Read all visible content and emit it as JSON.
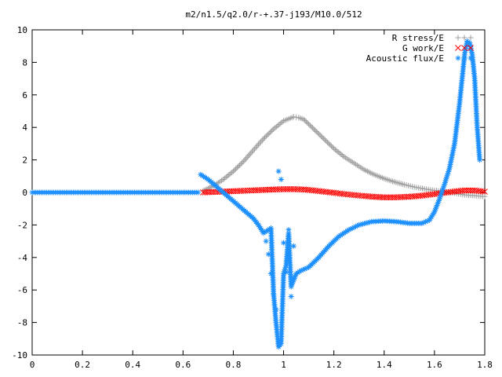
{
  "chart_data": {
    "type": "scatter",
    "title": "m2/n1.5/q2.0/r-+.37-j193/M10.0/512",
    "xlabel": "",
    "ylabel": "",
    "xlim": [
      0,
      1.8
    ],
    "ylim": [
      -10,
      10
    ],
    "x_ticks": [
      "0",
      "0.2",
      "0.4",
      "0.6",
      "0.8",
      "1",
      "1.2",
      "1.4",
      "1.6",
      "1.8"
    ],
    "y_ticks": [
      "10",
      "8",
      "6",
      "4",
      "2",
      "0",
      "-2",
      "-4",
      "-6",
      "-8",
      "-10"
    ],
    "grid": false,
    "legend_position": "top-right",
    "series": [
      {
        "name": "R stress/E",
        "marker": "+",
        "color": "#a0a0a0",
        "x": [
          0.68,
          0.72,
          0.76,
          0.8,
          0.84,
          0.88,
          0.92,
          0.96,
          1.0,
          1.04,
          1.06,
          1.08,
          1.12,
          1.16,
          1.2,
          1.24,
          1.28,
          1.32,
          1.36,
          1.4,
          1.44,
          1.48,
          1.52,
          1.56,
          1.6,
          1.64,
          1.68,
          1.72,
          1.76,
          1.8
        ],
        "y": [
          0.1,
          0.4,
          0.8,
          1.3,
          1.9,
          2.6,
          3.3,
          3.9,
          4.4,
          4.65,
          4.6,
          4.5,
          3.9,
          3.3,
          2.7,
          2.2,
          1.8,
          1.4,
          1.1,
          0.85,
          0.65,
          0.48,
          0.33,
          0.22,
          0.12,
          0.05,
          -0.05,
          -0.15,
          -0.2,
          -0.25
        ]
      },
      {
        "name": "G work/E",
        "marker": "x",
        "color": "#ff0000",
        "x": [
          0.68,
          0.72,
          0.76,
          0.8,
          0.84,
          0.88,
          0.92,
          0.96,
          1.0,
          1.04,
          1.08,
          1.12,
          1.16,
          1.2,
          1.24,
          1.28,
          1.32,
          1.36,
          1.4,
          1.44,
          1.48,
          1.52,
          1.56,
          1.6,
          1.64,
          1.68,
          1.72,
          1.76,
          1.8
        ],
        "y": [
          0.0,
          0.03,
          0.05,
          0.08,
          0.1,
          0.13,
          0.15,
          0.18,
          0.2,
          0.2,
          0.18,
          0.12,
          0.05,
          -0.02,
          -0.1,
          -0.16,
          -0.22,
          -0.27,
          -0.3,
          -0.3,
          -0.28,
          -0.24,
          -0.18,
          -0.1,
          -0.02,
          0.06,
          0.12,
          0.12,
          0.05
        ]
      },
      {
        "name": "Acoustic flux/E",
        "marker": "*",
        "color": "#1e90ff",
        "x": [
          0.67,
          0.7,
          0.73,
          0.76,
          0.79,
          0.82,
          0.85,
          0.88,
          0.9,
          0.92,
          0.95,
          0.96,
          0.97,
          0.98,
          0.99,
          1.0,
          1.01,
          1.02,
          1.03,
          1.05,
          1.07,
          1.1,
          1.14,
          1.18,
          1.22,
          1.26,
          1.3,
          1.35,
          1.4,
          1.45,
          1.5,
          1.55,
          1.58,
          1.6,
          1.62,
          1.64,
          1.66,
          1.68,
          1.7,
          1.72,
          1.73,
          1.74,
          1.75,
          1.76,
          1.77,
          1.78
        ],
        "y": [
          1.1,
          0.8,
          0.4,
          0.0,
          -0.4,
          -0.8,
          -1.2,
          -1.6,
          -2.0,
          -2.5,
          -2.2,
          -6.2,
          -8.0,
          -9.5,
          -9.3,
          -5.0,
          -4.5,
          -2.5,
          -5.8,
          -5.0,
          -4.8,
          -4.6,
          -4.0,
          -3.3,
          -2.7,
          -2.3,
          -2.0,
          -1.8,
          -1.75,
          -1.8,
          -1.9,
          -1.9,
          -1.7,
          -1.2,
          -0.4,
          0.5,
          1.5,
          3.0,
          5.5,
          8.5,
          9.3,
          9.2,
          8.5,
          7.0,
          4.0,
          2.0
        ]
      },
      {
        "name": "",
        "marker": "*",
        "color": "#1e90ff",
        "x": [
          0.0,
          0.1,
          0.2,
          0.3,
          0.4,
          0.5,
          0.6,
          0.66
        ],
        "y": [
          0,
          0,
          0,
          0,
          0,
          0,
          0,
          0
        ]
      },
      {
        "name": "",
        "marker": "*",
        "color": "#1e90ff",
        "x": [
          0.93,
          0.94,
          0.95,
          0.96,
          0.97,
          0.98,
          0.99,
          1.0,
          1.01,
          1.02,
          1.03,
          1.04
        ],
        "y": [
          -3.0,
          -3.8,
          -5.0,
          -6.3,
          -7.2,
          1.3,
          0.8,
          -3.1,
          -4.9,
          -2.3,
          -6.4,
          -3.3
        ]
      }
    ]
  }
}
